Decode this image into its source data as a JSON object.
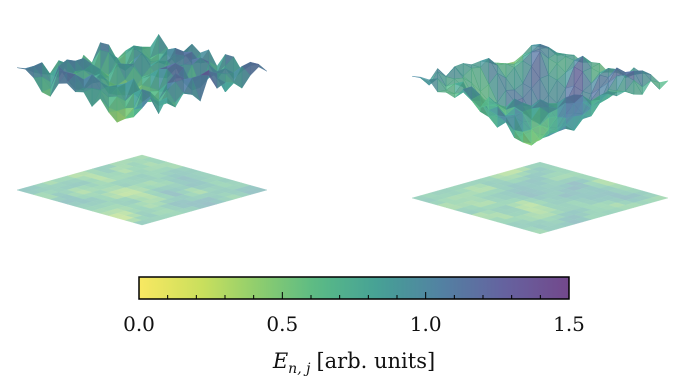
{
  "chart_data": {
    "type": "heatmap",
    "panels": [
      {
        "seed": 11,
        "bowl_depth": 0.0,
        "roughness": 1.0
      },
      {
        "seed": 37,
        "bowl_depth": 1.0,
        "roughness": 0.6
      }
    ],
    "colorbar": {
      "colormap": "viridis_r",
      "min": 0.0,
      "max": 1.5,
      "major_ticks": [
        0.0,
        0.5,
        1.0,
        1.5
      ],
      "major_tick_labels": [
        "0.0",
        "0.5",
        "1.0",
        "1.5"
      ],
      "minor_step": 0.1,
      "label_main": "E",
      "label_sub": "n, j",
      "label_units": "[arb. units]"
    }
  }
}
